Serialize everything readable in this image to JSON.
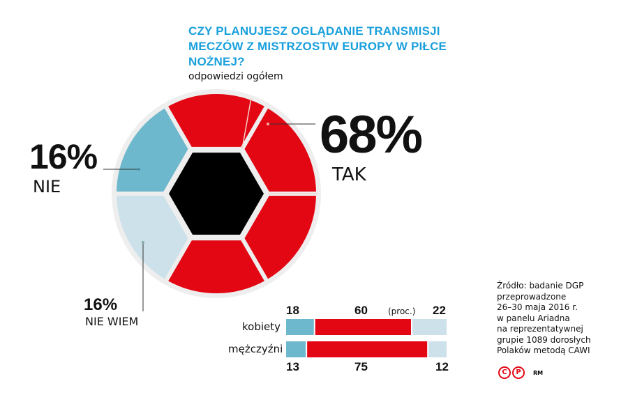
{
  "chart_data": [
    {
      "type": "pie",
      "title": "CZY PLANUJESZ OGLĄDANIE TRANSMISJI MECZÓW Z MISTRZOSTW EUROPY W PIŁCE NOŻNEJ?",
      "subtitle": "odpowiedzi ogółem",
      "slices": [
        {
          "label": "TAK",
          "value": 68,
          "display": "68%",
          "color": "#e30613"
        },
        {
          "label": "NIE",
          "value": 16,
          "display": "16%",
          "color": "#6db8cc"
        },
        {
          "label": "NIE WIEM",
          "value": 16,
          "display": "16%",
          "color": "#cde1ea"
        }
      ]
    },
    {
      "type": "bar",
      "stacked": true,
      "orientation": "horizontal",
      "unit": "(proc.)",
      "categories": [
        "kobiety",
        "mężczyźni"
      ],
      "series": [
        {
          "values": [
            18,
            13
          ],
          "color": "#6db8cc"
        },
        {
          "values": [
            60,
            75
          ],
          "color": "#e30613"
        },
        {
          "values": [
            22,
            12
          ],
          "color": "#cde1ea"
        }
      ]
    }
  ],
  "source": [
    "Źródło: badanie DGP",
    "przeprowadzone",
    "26–30 maja 2016 r.",
    "w panelu Ariadna",
    "na reprezentatywnej",
    "grupie 1089 dorosłych",
    "Polaków metodą CAWI"
  ],
  "credits": {
    "c": "C",
    "p": "P",
    "author": "RM"
  }
}
